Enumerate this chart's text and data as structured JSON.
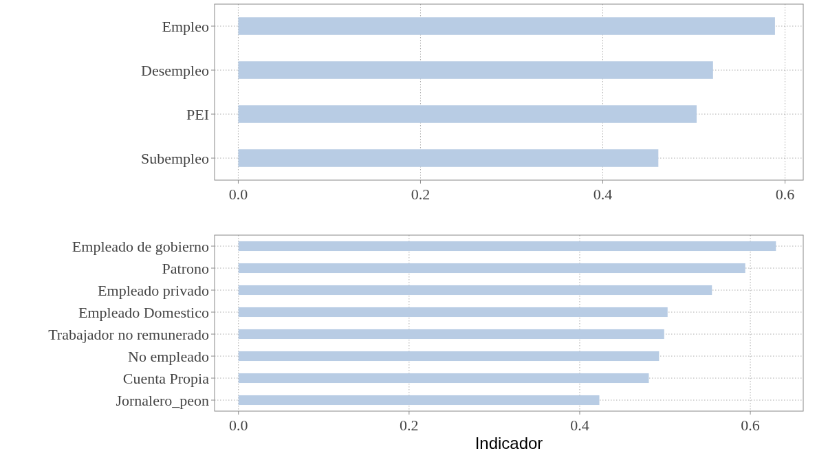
{
  "chart_data": [
    {
      "type": "bar",
      "orientation": "horizontal",
      "categories": [
        "Empleo",
        "Desempleo",
        "PEI",
        "Subempleo"
      ],
      "values": [
        0.589,
        0.521,
        0.503,
        0.461
      ],
      "color": "#b8cce4",
      "xlim": [
        -0.026,
        0.62
      ],
      "xticks": [
        {
          "value": 0,
          "label": "0.0"
        },
        0.2,
        0.4,
        0.6
      ],
      "grid": true
    },
    {
      "type": "bar",
      "orientation": "horizontal",
      "categories": [
        "Empleado de gobierno",
        "Patrono",
        "Empleado privado",
        "Empleado Domestico",
        "Trabajador no remunerado",
        "No empleado",
        "Cuenta Propia",
        "Jornalero_peon"
      ],
      "values": [
        0.63,
        0.594,
        0.555,
        0.503,
        0.499,
        0.493,
        0.481,
        0.423
      ],
      "color": "#b8cce4",
      "xlim": [
        -0.028,
        0.662
      ],
      "xticks": [
        {
          "value": 0,
          "label": "0.0"
        },
        0.2,
        0.4,
        0.6
      ],
      "grid": true,
      "xlabel": "Indicador"
    }
  ]
}
